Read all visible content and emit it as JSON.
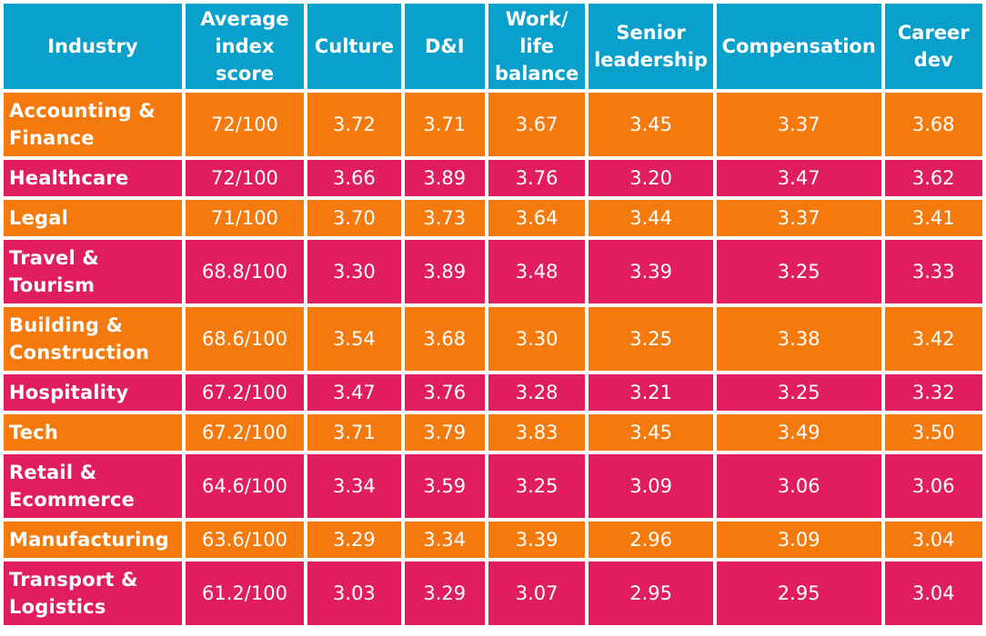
{
  "colors": {
    "header": "#0aa0cc",
    "orange": "#f47a0e",
    "pink": "#e01d5e",
    "text": "#ffffff"
  },
  "headers": {
    "industry": "Industry",
    "average_index_score": "Average\nindex\nscore",
    "culture": "Culture",
    "dandi": "D&I",
    "work_life_balance": "Work/\nlife\nbalance",
    "senior_leadership": "Senior\nleadership",
    "compensation": "Compensation",
    "career_dev": "Career\ndev"
  },
  "rows": [
    {
      "industry": "Accounting &\nFinance",
      "score": "72/100",
      "culture": "3.72",
      "dandi": "3.71",
      "wlb": "3.67",
      "senior": "3.45",
      "comp": "3.37",
      "career": "3.68"
    },
    {
      "industry": "Healthcare",
      "score": "72/100",
      "culture": "3.66",
      "dandi": "3.89",
      "wlb": "3.76",
      "senior": "3.20",
      "comp": "3.47",
      "career": "3.62"
    },
    {
      "industry": "Legal",
      "score": "71/100",
      "culture": "3.70",
      "dandi": "3.73",
      "wlb": "3.64",
      "senior": "3.44",
      "comp": "3.37",
      "career": "3.41"
    },
    {
      "industry": "Travel &\nTourism",
      "score": "68.8/100",
      "culture": "3.30",
      "dandi": "3.89",
      "wlb": "3.48",
      "senior": "3.39",
      "comp": "3.25",
      "career": "3.33"
    },
    {
      "industry": "Building &\nConstruction",
      "score": "68.6/100",
      "culture": "3.54",
      "dandi": "3.68",
      "wlb": "3.30",
      "senior": "3.25",
      "comp": "3.38",
      "career": "3.42"
    },
    {
      "industry": "Hospitality",
      "score": "67.2/100",
      "culture": "3.47",
      "dandi": "3.76",
      "wlb": "3.28",
      "senior": "3.21",
      "comp": "3.25",
      "career": "3.32"
    },
    {
      "industry": "Tech",
      "score": "67.2/100",
      "culture": "3.71",
      "dandi": "3.79",
      "wlb": "3.83",
      "senior": "3.45",
      "comp": "3.49",
      "career": "3.50"
    },
    {
      "industry": "Retail &\nEcommerce",
      "score": "64.6/100",
      "culture": "3.34",
      "dandi": "3.59",
      "wlb": "3.25",
      "senior": "3.09",
      "comp": "3.06",
      "career": "3.06"
    },
    {
      "industry": "Manufacturing",
      "score": "63.6/100",
      "culture": "3.29",
      "dandi": "3.34",
      "wlb": "3.39",
      "senior": "2.96",
      "comp": "3.09",
      "career": "3.04"
    },
    {
      "industry": "Transport &\nLogistics",
      "score": "61.2/100",
      "culture": "3.03",
      "dandi": "3.29",
      "wlb": "3.07",
      "senior": "2.95",
      "comp": "2.95",
      "career": "3.04"
    }
  ]
}
